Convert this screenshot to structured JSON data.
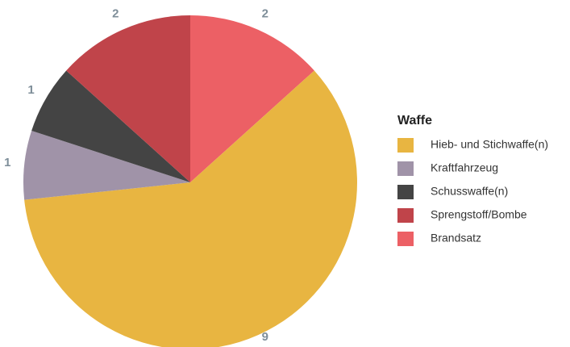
{
  "chart_data": {
    "type": "pie",
    "legend_title": "Waffe",
    "categories": [
      "Hieb- und Stichwaffe(n)",
      "Kraftfahrzeug",
      "Schusswaffe(n)",
      "Sprengstoff/Bombe",
      "Brandsatz"
    ],
    "values": [
      9,
      1,
      1,
      2,
      2
    ],
    "colors": [
      "#e8b541",
      "#a093a8",
      "#444444",
      "#c0444a",
      "#ec6065"
    ],
    "legend": "right"
  }
}
